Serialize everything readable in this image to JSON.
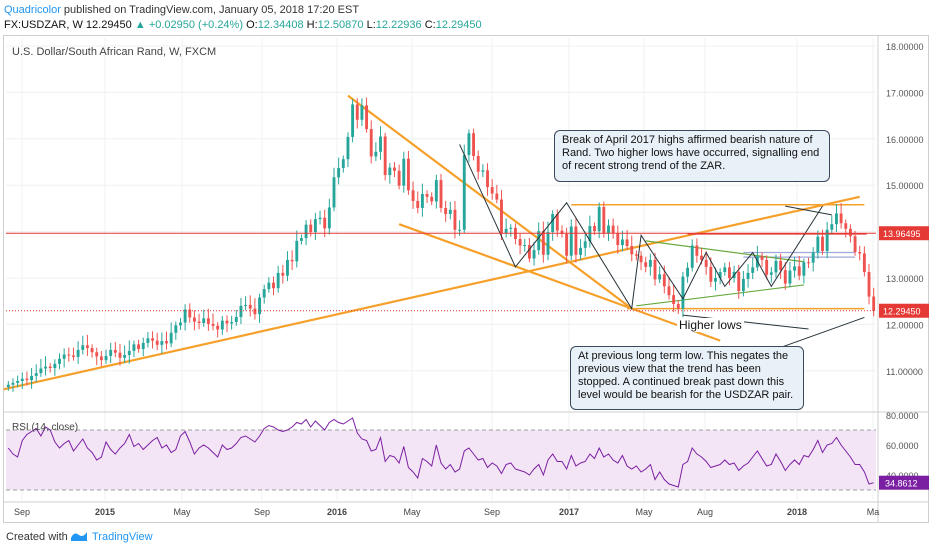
{
  "header": {
    "publisher": "Quadricolor",
    "published_text": "published on TradingView.com, January 05, 2018 17:20 EST",
    "symbol": "FX:USDZAR, W",
    "last": "12.29450",
    "change": "+0.02950 (+0.24%)",
    "o_label": "O:",
    "o_value": "12.34408",
    "h_label": "H:",
    "h_value": "12.50870",
    "l_label": "L:",
    "l_value": "12.22936",
    "c_label": "C:",
    "c_value": "12.29450"
  },
  "footer": {
    "created_with": "Created with",
    "brand": "TradingView"
  },
  "chart_data": [
    {
      "type": "candlestick",
      "title": "U.S. Dollar/South African Rand, W, FXCM",
      "ylim": [
        10.5,
        18.2
      ],
      "y_ticks": [
        "18.00000",
        "17.00000",
        "16.00000",
        "15.00000",
        "14.00000",
        "13.00000",
        "12.00000",
        "11.00000"
      ],
      "x_ticks": [
        "Sep",
        "2015",
        "May",
        "Sep",
        "2016",
        "May",
        "Sep",
        "2017",
        "May",
        "Aug",
        "2018",
        "Ma"
      ],
      "price_labels": [
        {
          "text": "13.96495",
          "value": 13.96495,
          "color": "#e53935"
        },
        {
          "text": "12.29450",
          "value": 12.2945,
          "color": "#e53935"
        }
      ],
      "closes": [
        10.7,
        10.74,
        10.78,
        10.83,
        10.8,
        10.89,
        10.95,
        11.05,
        11.09,
        11.06,
        11.15,
        11.26,
        11.35,
        11.33,
        11.3,
        11.45,
        11.55,
        11.49,
        11.4,
        11.31,
        11.23,
        11.32,
        11.45,
        11.39,
        11.28,
        11.34,
        11.43,
        11.57,
        11.47,
        11.6,
        11.7,
        11.65,
        11.56,
        11.64,
        11.59,
        11.82,
        11.98,
        12.04,
        12.32,
        12.15,
        12.06,
        12.03,
        12.13,
        12.01,
        11.97,
        11.89,
        12.08,
        12.02,
        12.05,
        12.16,
        12.4,
        12.42,
        12.34,
        12.22,
        12.58,
        12.76,
        12.9,
        12.78,
        13.11,
        13.05,
        13.39,
        13.36,
        13.8,
        13.86,
        14.15,
        13.99,
        14.27,
        14.3,
        14.07,
        14.52,
        15.17,
        15.37,
        15.56,
        16.04,
        16.74,
        16.41,
        16.72,
        16.21,
        15.62,
        15.72,
        16.05,
        15.22,
        15.38,
        15.31,
        14.99,
        15.57,
        14.89,
        14.66,
        14.51,
        14.81,
        14.75,
        14.65,
        15.11,
        14.51,
        14.38,
        14.47,
        14.04,
        14.04,
        15.65,
        16.12,
        15.63,
        15.29,
        15.32,
        14.96,
        14.82,
        14.69,
        13.97,
        14.06,
        14.08,
        13.84,
        13.7,
        13.71,
        13.42,
        13.6,
        14.01,
        13.5,
        13.99,
        14.38,
        14.02,
        13.95,
        13.48,
        14.11,
        13.5,
        13.65,
        13.79,
        14.12,
        14.01,
        14.53,
        13.97,
        14.13,
        13.96,
        13.71,
        13.83,
        13.69,
        13.51,
        13.48,
        13.34,
        13.24,
        13.39,
        12.97,
        13.08,
        12.82,
        12.63,
        12.44,
        12.34,
        13.03,
        13.22,
        13.7,
        13.48,
        13.39,
        13.24,
        12.92,
        13.0,
        13.13,
        13.23,
        13.0,
        13.13,
        12.72,
        12.98,
        13.11,
        13.23,
        13.47,
        13.39,
        13.07,
        13.12,
        13.37,
        13.17,
        12.88,
        13.16,
        13.25,
        13.05,
        13.34,
        13.33,
        13.55,
        13.89,
        13.58,
        14.04,
        14.16,
        14.39,
        14.18,
        14.06,
        13.9,
        13.56,
        13.53,
        13.13,
        12.6,
        12.29
      ],
      "rsi": {
        "title": "RSI (14, close)",
        "ylim": [
          27,
          82
        ],
        "y_ticks": [
          "80.0000",
          "60.0000",
          "40.0000"
        ],
        "band": [
          30,
          70
        ],
        "last_text": "34.8612",
        "values": [
          58,
          54,
          52,
          63,
          67,
          69,
          71,
          66,
          72,
          70,
          62,
          58,
          61,
          63,
          56,
          60,
          64,
          58,
          55,
          50,
          52,
          62,
          57,
          54,
          58,
          61,
          67,
          59,
          61,
          57,
          60,
          63,
          65,
          58,
          60,
          55,
          57,
          66,
          69,
          62,
          54,
          58,
          60,
          58,
          55,
          52,
          60,
          57,
          58,
          61,
          65,
          66,
          64,
          62,
          66,
          71,
          73,
          72,
          70,
          69,
          70,
          72,
          75,
          74,
          77,
          72,
          76,
          73,
          70,
          75,
          77,
          75,
          74,
          76,
          78,
          68,
          64,
          63,
          56,
          57,
          65,
          49,
          53,
          52,
          48,
          59,
          45,
          42,
          38,
          51,
          49,
          46,
          60,
          48,
          44,
          47,
          42,
          44,
          56,
          58,
          54,
          50,
          51,
          45,
          48,
          46,
          41,
          47,
          48,
          44,
          43,
          42,
          40,
          44,
          47,
          40,
          50,
          54,
          49,
          49,
          44,
          53,
          46,
          48,
          49,
          54,
          51,
          58,
          52,
          54,
          50,
          48,
          53,
          46,
          44,
          46,
          42,
          44,
          47,
          37,
          42,
          37,
          34,
          33,
          32,
          47,
          49,
          58,
          54,
          52,
          49,
          45,
          46,
          47,
          50,
          47,
          48,
          43,
          46,
          48,
          52,
          56,
          51,
          46,
          47,
          54,
          49,
          43,
          47,
          50,
          47,
          53,
          52,
          57,
          63,
          55,
          60,
          61,
          65,
          60,
          56,
          52,
          47,
          47,
          42,
          34,
          34.86
        ]
      }
    }
  ],
  "annotations": {
    "box1": "Break of April 2017 highs affirmed bearish nature of Rand. Two higher lows have occurred, signalling end of recent strong trend of the ZAR.",
    "box2": "At previous long term low.  This negates the previous view that the trend has been stopped. A continued break past down this level would be bearish for the USDZAR pair.",
    "label": "Higher lows"
  },
  "colors": {
    "up": "#26a69a",
    "down": "#ef5350",
    "trend": "#f5a02a",
    "resistance": "#e53935",
    "wedge": "#6aaa3e",
    "rsi_line": "#7b1fa2",
    "rsi_band": "#f3e5f5"
  }
}
